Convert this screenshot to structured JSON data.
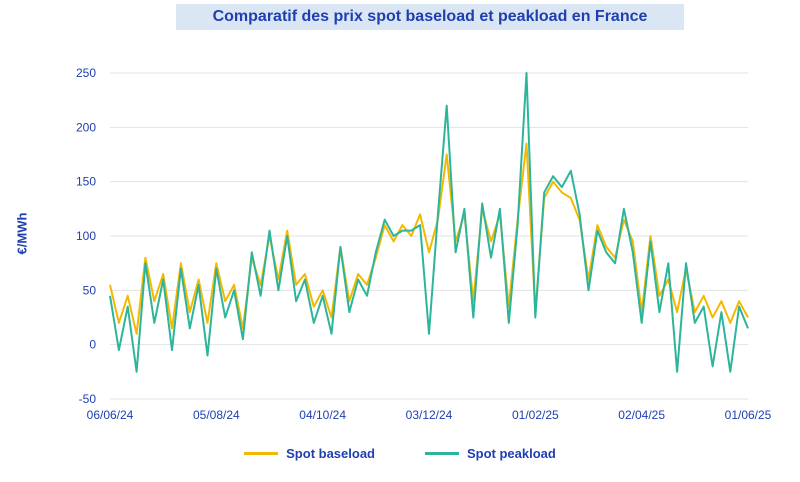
{
  "chart_data": {
    "type": "line",
    "title": "Comparatif des prix spot baseload et peakload en France",
    "ylabel": "€/MWh",
    "xlabel": "",
    "ylim": [
      -50,
      250
    ],
    "yticks": [
      "-50",
      "0",
      "50",
      "100",
      "150",
      "200",
      "250"
    ],
    "xticks": [
      "06/06/24",
      "05/08/24",
      "04/10/24",
      "03/12/24",
      "01/02/25",
      "02/04/25",
      "01/06/25"
    ],
    "grid": "horizontal",
    "legend": "bottom-center",
    "x": [
      "06/06/24",
      "10/06/24",
      "15/06/24",
      "20/06/24",
      "25/06/24",
      "30/06/24",
      "05/07/24",
      "10/07/24",
      "15/07/24",
      "20/07/24",
      "25/07/24",
      "30/07/24",
      "05/08/24",
      "10/08/24",
      "15/08/24",
      "20/08/24",
      "25/08/24",
      "30/08/24",
      "05/09/24",
      "10/09/24",
      "15/09/24",
      "20/09/24",
      "25/09/24",
      "30/09/24",
      "04/10/24",
      "10/10/24",
      "15/10/24",
      "20/10/24",
      "25/10/24",
      "30/10/24",
      "05/11/24",
      "10/11/24",
      "15/11/24",
      "20/11/24",
      "25/11/24",
      "30/11/24",
      "03/12/24",
      "08/12/24",
      "12/12/24",
      "16/12/24",
      "20/12/24",
      "25/12/24",
      "30/12/24",
      "05/01/25",
      "10/01/25",
      "15/01/25",
      "20/01/25",
      "25/01/25",
      "01/02/25",
      "05/02/25",
      "10/02/25",
      "15/02/25",
      "20/02/25",
      "25/02/25",
      "01/03/25",
      "05/03/25",
      "10/03/25",
      "15/03/25",
      "20/03/25",
      "25/03/25",
      "02/04/25",
      "07/04/25",
      "12/04/25",
      "17/04/25",
      "22/04/25",
      "27/04/25",
      "02/05/25",
      "07/05/25",
      "12/05/25",
      "17/05/25",
      "22/05/25",
      "27/05/25",
      "01/06/25"
    ],
    "series": [
      {
        "name": "Spot baseload",
        "color": "#f5b800",
        "values": [
          55,
          20,
          45,
          10,
          80,
          40,
          65,
          15,
          75,
          30,
          60,
          20,
          75,
          40,
          55,
          15,
          80,
          55,
          100,
          60,
          105,
          55,
          65,
          35,
          50,
          25,
          90,
          40,
          65,
          55,
          80,
          110,
          95,
          110,
          100,
          120,
          85,
          115,
          175,
          95,
          120,
          40,
          125,
          95,
          120,
          35,
          115,
          185,
          30,
          135,
          150,
          140,
          135,
          115,
          60,
          110,
          90,
          80,
          115,
          95,
          30,
          100,
          45,
          60,
          30,
          70,
          30,
          45,
          25,
          40,
          20,
          40,
          25
        ]
      },
      {
        "name": "Spot peakload",
        "color": "#2db59c",
        "values": [
          45,
          -5,
          35,
          -25,
          75,
          20,
          60,
          -5,
          70,
          15,
          55,
          -10,
          70,
          25,
          50,
          5,
          85,
          45,
          105,
          50,
          100,
          40,
          60,
          20,
          45,
          10,
          90,
          30,
          60,
          45,
          85,
          115,
          100,
          105,
          105,
          110,
          10,
          120,
          220,
          85,
          125,
          25,
          130,
          80,
          125,
          20,
          110,
          250,
          25,
          140,
          155,
          145,
          160,
          120,
          50,
          105,
          85,
          75,
          125,
          85,
          20,
          95,
          30,
          75,
          -25,
          75,
          20,
          35,
          -20,
          30,
          -25,
          35,
          15
        ]
      }
    ]
  }
}
